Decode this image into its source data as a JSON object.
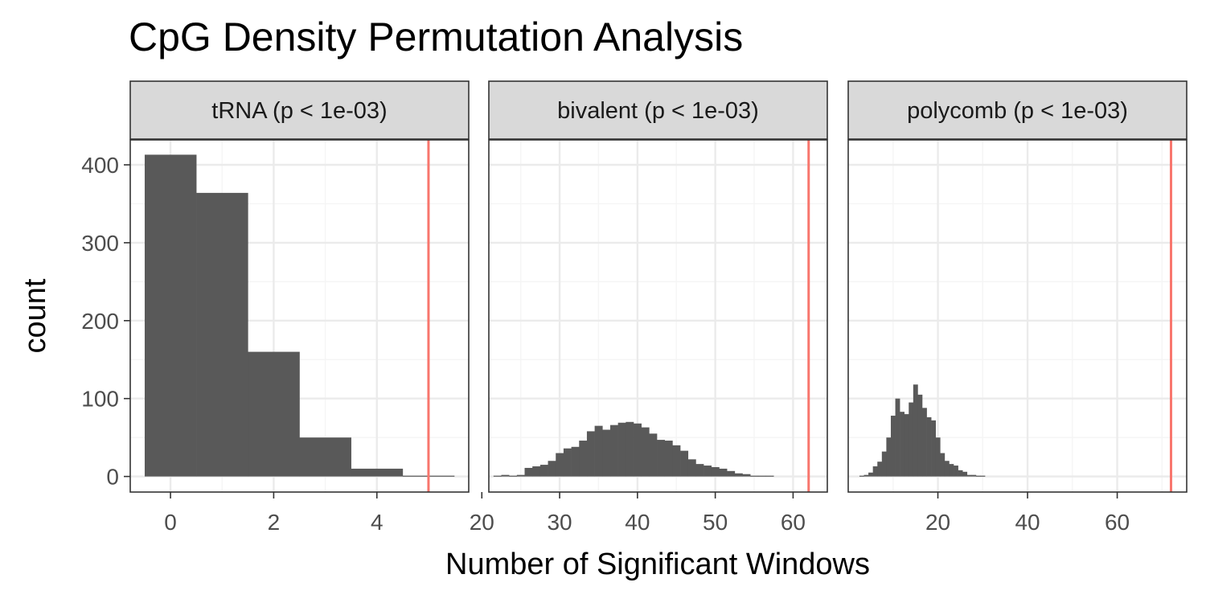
{
  "chart_data": {
    "type": "bar",
    "title": "CpG Density Permutation Analysis",
    "xlabel": "Number of Significant Windows",
    "ylabel": "count",
    "ylim": [
      -20,
      432
    ],
    "yticks": [
      0,
      100,
      200,
      300,
      400
    ],
    "grid": true,
    "colors": {
      "bar": "#595959",
      "observed_line": "#F8766D",
      "strip_fill": "#d9d9d9",
      "panel_border": "#333333",
      "grid_major": "#ebebeb",
      "grid_minor": "#f5f5f5"
    },
    "panels": [
      {
        "label": "tRNA (p < 1e-03)",
        "xlim": [
          -0.78,
          5.78
        ],
        "xticks": [
          0,
          2,
          4
        ],
        "binwidth": 1,
        "bins": [
          0,
          1,
          2,
          3,
          4,
          5
        ],
        "counts": [
          413,
          364,
          160,
          50,
          10,
          1
        ],
        "observed": 5
      },
      {
        "label": "bivalent (p < 1e-03)",
        "xlim": [
          20.9,
          64.4
        ],
        "xticks": [
          20,
          30,
          40,
          50,
          60
        ],
        "binwidth": 1,
        "bins": [
          21,
          22,
          23,
          24,
          25,
          26,
          27,
          28,
          29,
          30,
          31,
          32,
          33,
          34,
          35,
          36,
          37,
          38,
          39,
          40,
          41,
          42,
          43,
          44,
          45,
          46,
          47,
          48,
          49,
          50,
          51,
          52,
          53,
          54,
          55,
          56,
          57
        ],
        "counts": [
          0,
          1,
          2,
          1,
          2,
          11,
          13,
          15,
          20,
          30,
          36,
          38,
          46,
          58,
          65,
          60,
          66,
          69,
          70,
          68,
          63,
          55,
          47,
          46,
          40,
          33,
          22,
          16,
          14,
          12,
          10,
          7,
          4,
          3,
          1,
          1,
          1
        ],
        "observed": 62
      },
      {
        "label": "polycomb (p < 1e-03)",
        "xlim": [
          0,
          75.5
        ],
        "xticks": [
          20,
          40,
          60
        ],
        "binwidth": 1,
        "bins": [
          3,
          4,
          5,
          6,
          7,
          8,
          9,
          10,
          11,
          12,
          13,
          14,
          15,
          16,
          17,
          18,
          19,
          20,
          21,
          22,
          23,
          24,
          25,
          26,
          27,
          28,
          29,
          30
        ],
        "counts": [
          1,
          2,
          5,
          13,
          19,
          32,
          50,
          78,
          100,
          83,
          80,
          95,
          118,
          105,
          88,
          76,
          72,
          50,
          30,
          20,
          16,
          14,
          8,
          6,
          2,
          2,
          1,
          1
        ],
        "observed": 72
      }
    ]
  }
}
